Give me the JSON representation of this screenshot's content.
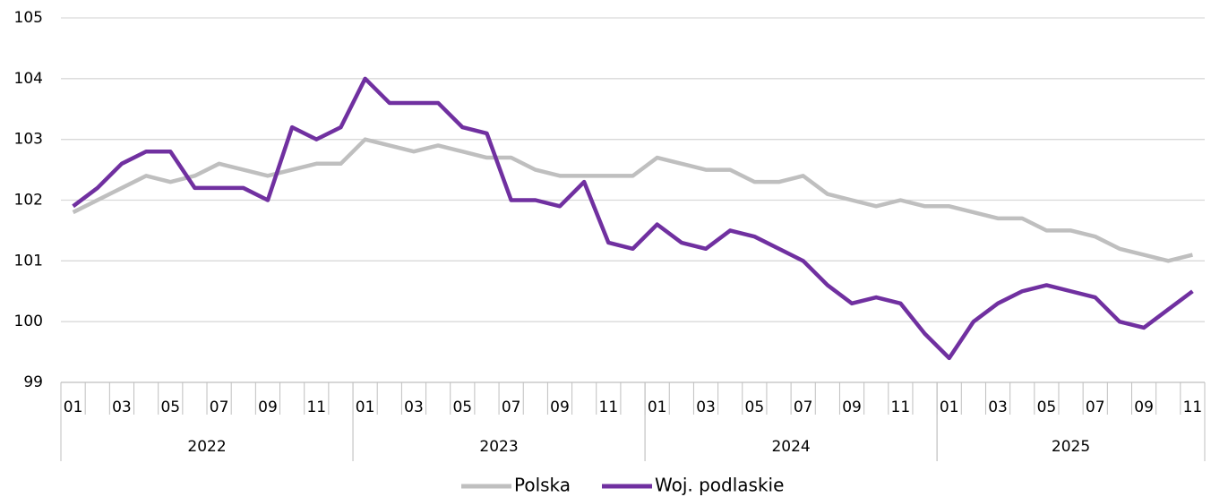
{
  "chart_data": {
    "type": "line",
    "categories": [
      "01",
      null,
      "03",
      null,
      "05",
      null,
      "07",
      null,
      "09",
      null,
      "11",
      null,
      "01",
      null,
      "03",
      null,
      "05",
      null,
      "07",
      null,
      "09",
      null,
      "11",
      null,
      "01",
      null,
      "03",
      null,
      "05",
      null,
      "07",
      null,
      "09",
      null,
      "11",
      null,
      "01",
      null,
      "03",
      null,
      "05",
      null,
      "07",
      null,
      "09",
      null,
      "11"
    ],
    "years": [
      "2022",
      "2023",
      "2024",
      "2025"
    ],
    "series": [
      {
        "name": "Polska",
        "color": "#bfbfbf",
        "values": [
          101.8,
          102.0,
          102.2,
          102.4,
          102.3,
          102.4,
          102.6,
          102.5,
          102.4,
          102.5,
          102.6,
          102.6,
          103.0,
          102.9,
          102.8,
          102.9,
          102.8,
          102.7,
          102.7,
          102.5,
          102.4,
          102.4,
          102.4,
          102.4,
          102.7,
          102.6,
          102.5,
          102.5,
          102.3,
          102.3,
          102.4,
          102.1,
          102.0,
          101.9,
          102.0,
          101.9,
          101.9,
          101.8,
          101.7,
          101.7,
          101.5,
          101.5,
          101.4,
          101.2,
          101.1,
          101.0,
          101.1
        ]
      },
      {
        "name": "Woj. podlaskie",
        "color": "#7030a0",
        "values": [
          101.9,
          102.2,
          102.6,
          102.8,
          102.8,
          102.2,
          102.2,
          102.2,
          102.0,
          103.2,
          103.0,
          103.2,
          104.0,
          103.6,
          103.6,
          103.6,
          103.2,
          103.1,
          102.0,
          102.0,
          101.9,
          102.3,
          101.3,
          101.2,
          101.6,
          101.3,
          101.2,
          101.5,
          101.4,
          101.2,
          101.0,
          100.6,
          100.3,
          100.4,
          100.3,
          99.8,
          99.4,
          100.0,
          100.3,
          100.5,
          100.6,
          100.5,
          100.4,
          100.0,
          99.9,
          100.2,
          100.5
        ]
      }
    ],
    "ylim": [
      99,
      105
    ],
    "yticks": [
      99,
      100,
      101,
      102,
      103,
      104,
      105
    ],
    "grid": true,
    "legend": "bottom"
  }
}
